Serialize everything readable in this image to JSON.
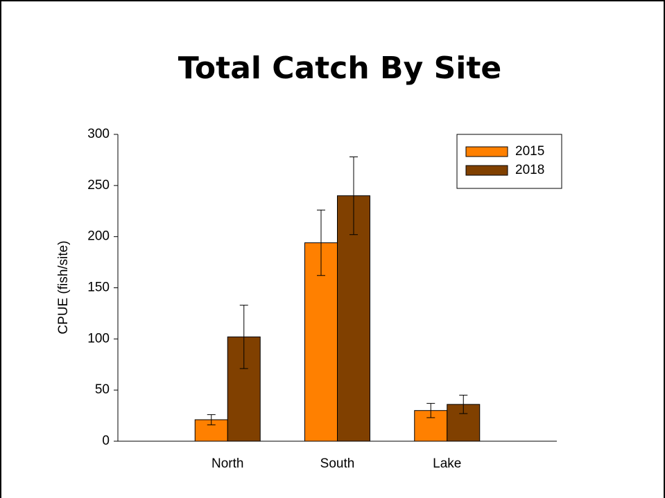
{
  "chart_data": {
    "type": "bar",
    "title": "Total Catch By Site",
    "y_label": "CPUE (fish/site)",
    "categories": [
      "North",
      "South",
      "Lake"
    ],
    "series": [
      {
        "name": "2015",
        "color": "#ff8000",
        "values": [
          21,
          194,
          30
        ],
        "errors": [
          5,
          32,
          7
        ]
      },
      {
        "name": "2018",
        "color": "#804000",
        "values": [
          102,
          240,
          36
        ],
        "errors": [
          31,
          38,
          9
        ]
      }
    ],
    "ylim": [
      0,
      300
    ],
    "yticks": [
      0,
      50,
      100,
      150,
      200,
      250,
      300
    ],
    "grid": false,
    "legend": "upper right"
  }
}
